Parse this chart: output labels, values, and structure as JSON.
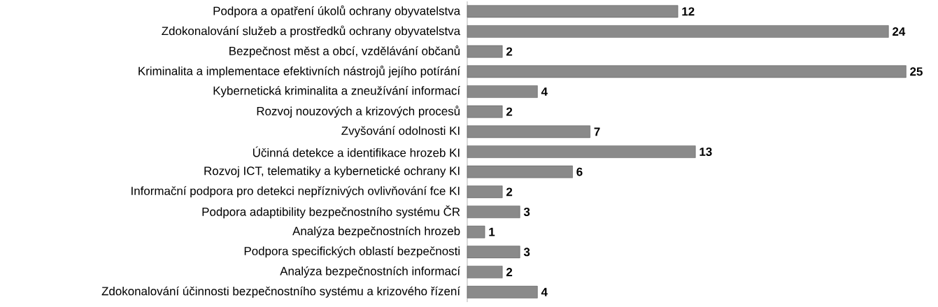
{
  "chart_data": {
    "type": "bar",
    "orientation": "horizontal",
    "data_labels": true,
    "color": "#8a8a8a",
    "categories": [
      "Podpora a opatření úkolů ochrany obyvatelstva",
      "Zdokonalování služeb a prostředků ochrany obyvatelstva",
      "Bezpečnost měst a obcí, vzdělávání občanů",
      "Kriminalita a implementace efektivních nástrojů jejího potírání",
      "Kybernetická kriminalita a zneužívání informací",
      "Rozvoj nouzových a krizových procesů",
      "Zvyšování odolnosti KI",
      "Účinná detekce a identifikace hrozeb KI",
      "Rozvoj ICT, telematiky a kybernetické ochrany KI",
      "Informační podpora pro detekci nepříznivých ovlivňování fce KI",
      "Podpora adaptibility bezpečnostního systému ČR",
      "Analýza bezpečnostních hrozeb",
      "Podpora specifických oblastí bezpečnosti",
      "Analýza bezpečnostních informací",
      "Zdokonalování účinnosti bezpečnostního systému a krizového řízení"
    ],
    "values": [
      12,
      24,
      2,
      25,
      4,
      2,
      7,
      13,
      6,
      2,
      3,
      1,
      3,
      2,
      4
    ]
  }
}
